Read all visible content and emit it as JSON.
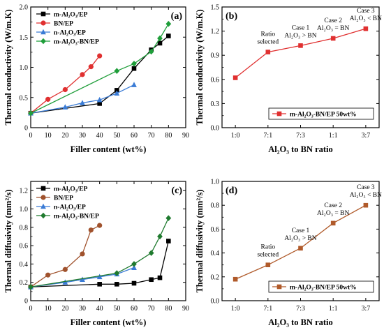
{
  "chart_data": [
    {
      "panel": "(a)",
      "type": "line",
      "xlabel": "Filler content (wt%)",
      "ylabel": "Thermal conductivity (W/m.K)",
      "xlim": [
        0,
        90
      ],
      "ylim": [
        0,
        2.0
      ],
      "xticks": [
        0,
        10,
        20,
        30,
        40,
        50,
        60,
        70,
        80,
        90
      ],
      "yticks": [
        0,
        0.5,
        1.0,
        1.5,
        2.0
      ],
      "ytick_labels": [
        "0",
        "0.5",
        "1.0",
        "1.5",
        "2.0"
      ],
      "legend_position": "top-left",
      "series": [
        {
          "name": "m-Al₂O₃/EP",
          "color": "#000000",
          "marker": "square",
          "x": [
            0,
            40,
            50,
            60,
            70,
            75,
            80
          ],
          "y": [
            0.24,
            0.4,
            0.62,
            0.98,
            1.29,
            1.4,
            1.52
          ]
        },
        {
          "name": "BN/EP",
          "color": "#e03030",
          "marker": "circle",
          "x": [
            0,
            10,
            20,
            30,
            35,
            40
          ],
          "y": [
            0.24,
            0.47,
            0.63,
            0.88,
            1.01,
            1.19
          ]
        },
        {
          "name": "n-Al₂O₃/EP",
          "color": "#3a7bd5",
          "marker": "triangle",
          "x": [
            0,
            20,
            30,
            40,
            50,
            60
          ],
          "y": [
            0.24,
            0.34,
            0.41,
            0.46,
            0.57,
            0.71
          ]
        },
        {
          "name": "m-Al₂O₃-BN/EP",
          "color": "#1f9e3a",
          "marker": "diamond",
          "x": [
            0,
            50,
            60,
            70,
            75,
            80
          ],
          "y": [
            0.24,
            0.94,
            1.06,
            1.26,
            1.48,
            1.72
          ]
        }
      ]
    },
    {
      "panel": "(b)",
      "type": "line",
      "xlabel": "Al₂O₃ to BN ratio",
      "ylabel": "Thermal conductivity (W/m.K)",
      "categories": [
        "1:0",
        "7:1",
        "7:3",
        "1:1",
        "3:7"
      ],
      "ylim": [
        0,
        1.5
      ],
      "yticks": [
        0,
        0.3,
        0.6,
        0.9,
        1.2,
        1.5
      ],
      "ytick_labels": [
        "0.0",
        "0.3",
        "0.6",
        "0.9",
        "1.2",
        "1.5"
      ],
      "legend_position": "bottom-right",
      "series": [
        {
          "name": "m-Al₂O₃-BN/EP 50wt%",
          "color": "#e03030",
          "marker": "square",
          "values": [
            0.62,
            0.94,
            1.02,
            1.11,
            1.23
          ]
        }
      ],
      "annotations": [
        {
          "lines": [
            "Ratio",
            "selected"
          ],
          "category": "7:1"
        },
        {
          "lines": [
            "Case 1",
            "Al₂O₃ > BN"
          ],
          "category": "7:3"
        },
        {
          "lines": [
            "Case 2",
            "Al₂O₃ = BN"
          ],
          "category": "1:1"
        },
        {
          "lines": [
            "Case 3",
            "Al₂O₃ < BN"
          ],
          "category": "3:7"
        }
      ]
    },
    {
      "panel": "(c)",
      "type": "line",
      "xlabel": "Filler content (wt%)",
      "ylabel": "Thermal diffusivity (mm²/s)",
      "xlim": [
        0,
        90
      ],
      "ylim": [
        0,
        1.3
      ],
      "xticks": [
        0,
        10,
        20,
        30,
        40,
        50,
        60,
        70,
        80,
        90
      ],
      "yticks": [
        0,
        0.2,
        0.4,
        0.6,
        0.8,
        1.0,
        1.2
      ],
      "ytick_labels": [
        "0",
        "0.2",
        "0.4",
        "0.6",
        "0.8",
        "1.0",
        "1.2"
      ],
      "legend_position": "top-left",
      "series": [
        {
          "name": "m-Al₂O₃/EP",
          "color": "#000000",
          "marker": "square",
          "x": [
            0,
            40,
            50,
            60,
            70,
            75,
            80
          ],
          "y": [
            0.15,
            0.18,
            0.18,
            0.19,
            0.23,
            0.25,
            0.65
          ]
        },
        {
          "name": "BN/EP",
          "color": "#a0522d",
          "marker": "circle",
          "x": [
            0,
            10,
            20,
            30,
            35,
            40
          ],
          "y": [
            0.15,
            0.28,
            0.34,
            0.51,
            0.77,
            0.82
          ]
        },
        {
          "name": "n-Al₂O₃/EP",
          "color": "#3a7bd5",
          "marker": "triangle",
          "x": [
            0,
            20,
            30,
            40,
            50,
            60
          ],
          "y": [
            0.15,
            0.2,
            0.23,
            0.26,
            0.29,
            0.36
          ]
        },
        {
          "name": "m-Al₂O₃-BN/EP",
          "color": "#1f7a2e",
          "marker": "diamond",
          "x": [
            0,
            50,
            60,
            70,
            75,
            80
          ],
          "y": [
            0.15,
            0.3,
            0.4,
            0.52,
            0.7,
            0.9
          ]
        }
      ]
    },
    {
      "panel": "(d)",
      "type": "line",
      "xlabel": "Al₂O₃ to BN ratio",
      "ylabel": "Thermal diffusivity (mm²/s)",
      "categories": [
        "1:0",
        "7:1",
        "7:3",
        "1:1",
        "3:7"
      ],
      "ylim": [
        0,
        1.0
      ],
      "yticks": [
        0,
        0.2,
        0.4,
        0.6,
        0.8,
        1.0
      ],
      "ytick_labels": [
        "0.0",
        "0.2",
        "0.4",
        "0.6",
        "0.8",
        "1.0"
      ],
      "legend_position": "bottom-right",
      "series": [
        {
          "name": "m-Al₂O₃-BN/EP 50wt%",
          "color": "#b05a2a",
          "marker": "square",
          "values": [
            0.18,
            0.3,
            0.44,
            0.65,
            0.8
          ]
        }
      ],
      "annotations": [
        {
          "lines": [
            "Ratio",
            "selected"
          ],
          "category": "7:1"
        },
        {
          "lines": [
            "Case 1",
            "Al₂O₃ > BN"
          ],
          "category": "7:3"
        },
        {
          "lines": [
            "Case 2",
            "Al₂O₃ = BN"
          ],
          "category": "1:1"
        },
        {
          "lines": [
            "Case 3",
            "Al₂O₃ < BN"
          ],
          "category": "3:7"
        }
      ]
    }
  ]
}
